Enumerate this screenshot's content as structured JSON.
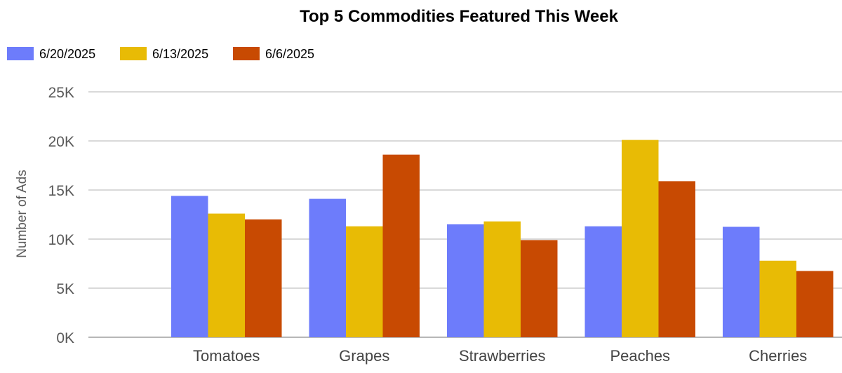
{
  "chart_data": {
    "type": "bar",
    "title": "Top 5 Commodities Featured This Week",
    "ylabel": "Number of Ads",
    "xlabel": "",
    "categories": [
      "Tomatoes",
      "Grapes",
      "Strawberries",
      "Peaches",
      "Cherries"
    ],
    "series": [
      {
        "name": "6/20/2025",
        "color": "#6d7cfb",
        "values": [
          14400,
          14100,
          11500,
          11300,
          11250
        ]
      },
      {
        "name": "6/13/2025",
        "color": "#e8bb05",
        "values": [
          12600,
          11300,
          11800,
          20100,
          7800
        ]
      },
      {
        "name": "6/6/2025",
        "color": "#c84a02",
        "values": [
          12000,
          18600,
          9900,
          15900,
          6750
        ]
      }
    ],
    "ylim": [
      0,
      25000
    ],
    "yticks": [
      0,
      5000,
      10000,
      15000,
      20000,
      25000
    ],
    "ytick_labels": [
      "0K",
      "5K",
      "10K",
      "15K",
      "20K",
      "25K"
    ],
    "grid": true,
    "legend_position": "top-left"
  }
}
